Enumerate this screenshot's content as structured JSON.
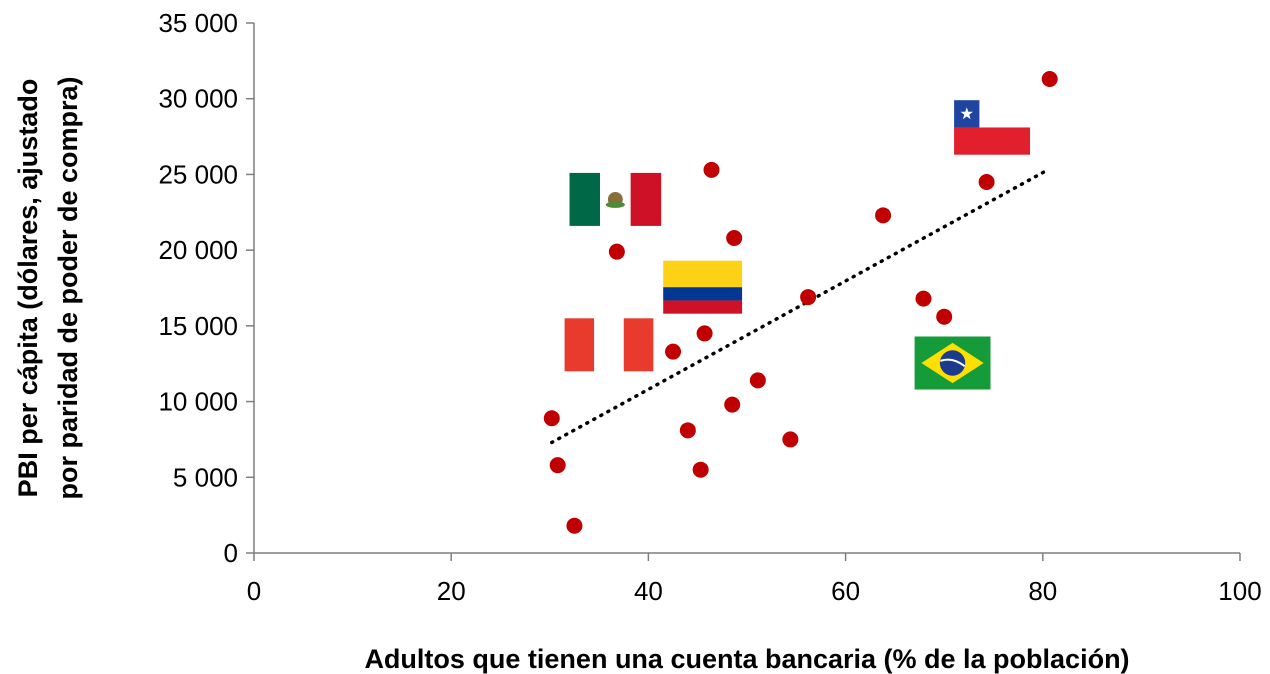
{
  "chart_data": {
    "type": "scatter",
    "title": "",
    "xlabel": "Adultos que tienen una cuenta bancaria (% de la población)",
    "ylabel_lines": [
      "PBI per cápita (dólares, ajustado",
      "por paridad de poder de compra)"
    ],
    "xlim": [
      0,
      100
    ],
    "ylim": [
      0,
      35000
    ],
    "x_ticks": [
      0,
      20,
      40,
      60,
      80,
      100
    ],
    "x_tick_labels": [
      "0",
      "20",
      "40",
      "60",
      "80",
      "100"
    ],
    "y_ticks": [
      0,
      5000,
      10000,
      15000,
      20000,
      25000,
      30000,
      35000
    ],
    "y_tick_labels": [
      "0",
      "5 000",
      "10 000",
      "15 000",
      "20 000",
      "25 000",
      "30 000",
      "35 000"
    ],
    "grid": false,
    "marker_color": "#c00000",
    "points": [
      {
        "x": 30.2,
        "y": 8900
      },
      {
        "x": 30.8,
        "y": 5800
      },
      {
        "x": 32.5,
        "y": 1800
      },
      {
        "x": 36.8,
        "y": 19900
      },
      {
        "x": 42.5,
        "y": 13300
      },
      {
        "x": 44.0,
        "y": 8100
      },
      {
        "x": 45.3,
        "y": 5500
      },
      {
        "x": 45.7,
        "y": 14500
      },
      {
        "x": 46.4,
        "y": 25300
      },
      {
        "x": 48.5,
        "y": 9800
      },
      {
        "x": 48.7,
        "y": 20800
      },
      {
        "x": 51.1,
        "y": 11400
      },
      {
        "x": 54.4,
        "y": 7500
      },
      {
        "x": 56.2,
        "y": 16900
      },
      {
        "x": 63.8,
        "y": 22300
      },
      {
        "x": 67.9,
        "y": 16800
      },
      {
        "x": 70.0,
        "y": 15600
      },
      {
        "x": 74.3,
        "y": 24500
      },
      {
        "x": 80.7,
        "y": 31300
      }
    ],
    "trendline": {
      "style": "dotted",
      "color": "#000000",
      "from": {
        "x": 30.2,
        "y": 7300
      },
      "to": {
        "x": 80.5,
        "y": 25300
      }
    },
    "flags": [
      {
        "country": "Mexico",
        "icon": "mexico-flag-icon",
        "x_from": 32.0,
        "x_to": 41.3,
        "y_from": 21600,
        "y_to": 25100
      },
      {
        "country": "Chile",
        "icon": "chile-flag-icon",
        "x_from": 71.0,
        "x_to": 78.7,
        "y_from": 26300,
        "y_to": 29900
      },
      {
        "country": "Colombia",
        "icon": "colombia-flag-icon",
        "x_from": 41.5,
        "x_to": 49.5,
        "y_from": 15800,
        "y_to": 19300
      },
      {
        "country": "Peru",
        "icon": "peru-flag-icon",
        "x_from": 31.5,
        "x_to": 40.5,
        "y_from": 12000,
        "y_to": 15500
      },
      {
        "country": "Brazil",
        "icon": "brazil-flag-icon",
        "x_from": 67.0,
        "x_to": 74.7,
        "y_from": 10800,
        "y_to": 14300
      }
    ]
  }
}
